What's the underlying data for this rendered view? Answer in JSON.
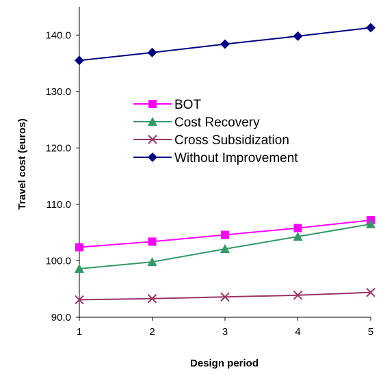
{
  "chart_data": {
    "type": "line",
    "title": "",
    "xlabel": "Design period",
    "ylabel": "Travel cost (euros)",
    "x": [
      1,
      2,
      3,
      4,
      5
    ],
    "x_tick_labels": [
      "1",
      "2",
      "3",
      "4",
      "5"
    ],
    "xlim": [
      1,
      5
    ],
    "ylim": [
      90,
      145
    ],
    "y_ticks": [
      90,
      100,
      110,
      120,
      130,
      140
    ],
    "y_tick_labels": [
      "90.0",
      "100.0",
      "110.0",
      "120.0",
      "130.0",
      "140.0"
    ],
    "grid": false,
    "legend_position": "center",
    "series": [
      {
        "name": "BOT",
        "color": "#ff00ff",
        "marker": "square",
        "values": [
          102.4,
          103.4,
          104.6,
          105.8,
          107.2
        ]
      },
      {
        "name": "Cost Recovery",
        "color": "#339966",
        "marker": "triangle",
        "values": [
          98.6,
          99.8,
          102.1,
          104.3,
          106.5
        ]
      },
      {
        "name": "Cross Subsidization",
        "color": "#993366",
        "marker": "x",
        "values": [
          93.1,
          93.3,
          93.6,
          93.9,
          94.4
        ]
      },
      {
        "name": "Without Improvement",
        "color": "#000080",
        "marker": "diamond",
        "values": [
          135.5,
          136.9,
          138.4,
          139.8,
          141.3
        ]
      }
    ]
  }
}
